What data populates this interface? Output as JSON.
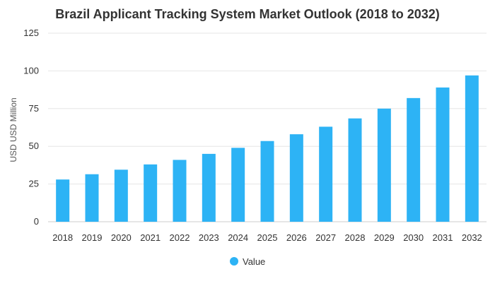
{
  "chart_data": {
    "type": "bar",
    "title": "Brazil Applicant Tracking System Market Outlook (2018 to 2032)",
    "xlabel": "",
    "ylabel": "USD USD Million",
    "categories": [
      "2018",
      "2019",
      "2020",
      "2021",
      "2022",
      "2023",
      "2024",
      "2025",
      "2026",
      "2027",
      "2028",
      "2029",
      "2030",
      "2031",
      "2032"
    ],
    "series": [
      {
        "name": "Value",
        "values": [
          28,
          31.5,
          34.5,
          38,
          41,
          45,
          49,
          53.5,
          58,
          63,
          68.5,
          75,
          82,
          89,
          97
        ]
      }
    ],
    "ylim": [
      0,
      125
    ],
    "yticks": [
      0,
      25,
      50,
      75,
      100,
      125
    ],
    "grid": true,
    "legend": "bottom-center",
    "color": "#2db3f5"
  }
}
